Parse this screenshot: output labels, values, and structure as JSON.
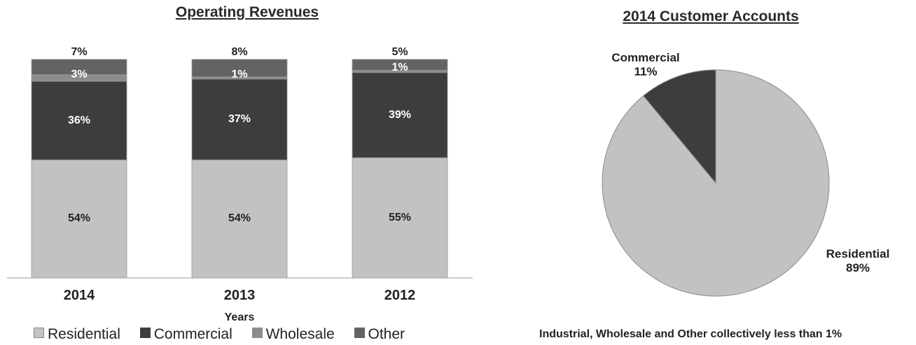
{
  "chart_data": [
    {
      "type": "bar",
      "stacked": true,
      "title": "Operating Revenues",
      "xlabel": "Years",
      "ylabel": "",
      "categories": [
        "2014",
        "2013",
        "2012"
      ],
      "series": [
        {
          "name": "Residential",
          "values": [
            54,
            54,
            55
          ],
          "labels": [
            "54%",
            "54%",
            "55%"
          ],
          "color": "#c2c2c2"
        },
        {
          "name": "Commercial",
          "values": [
            36,
            37,
            39
          ],
          "labels": [
            "36%",
            "37%",
            "39%"
          ],
          "color": "#3d3d3d"
        },
        {
          "name": "Wholesale",
          "values": [
            3,
            1,
            1
          ],
          "labels": [
            "3%",
            "1%",
            "1%"
          ],
          "color": "#8c8c8c"
        },
        {
          "name": "Other",
          "values": [
            7,
            8,
            5
          ],
          "labels": [
            "7%",
            "8%",
            "5%"
          ],
          "color": "#636363"
        }
      ],
      "ylim": [
        0,
        100
      ],
      "grid": false,
      "legend": "bottom"
    },
    {
      "type": "pie",
      "title": "2014 Customer Accounts",
      "slices": [
        {
          "name": "Residential",
          "value": 89,
          "label": "89%",
          "color": "#c2c2c2"
        },
        {
          "name": "Commercial",
          "value": 11,
          "label": "11%",
          "color": "#3d3d3d"
        }
      ],
      "note": "Industrial, Wholesale and Other collectively less than 1%"
    }
  ]
}
